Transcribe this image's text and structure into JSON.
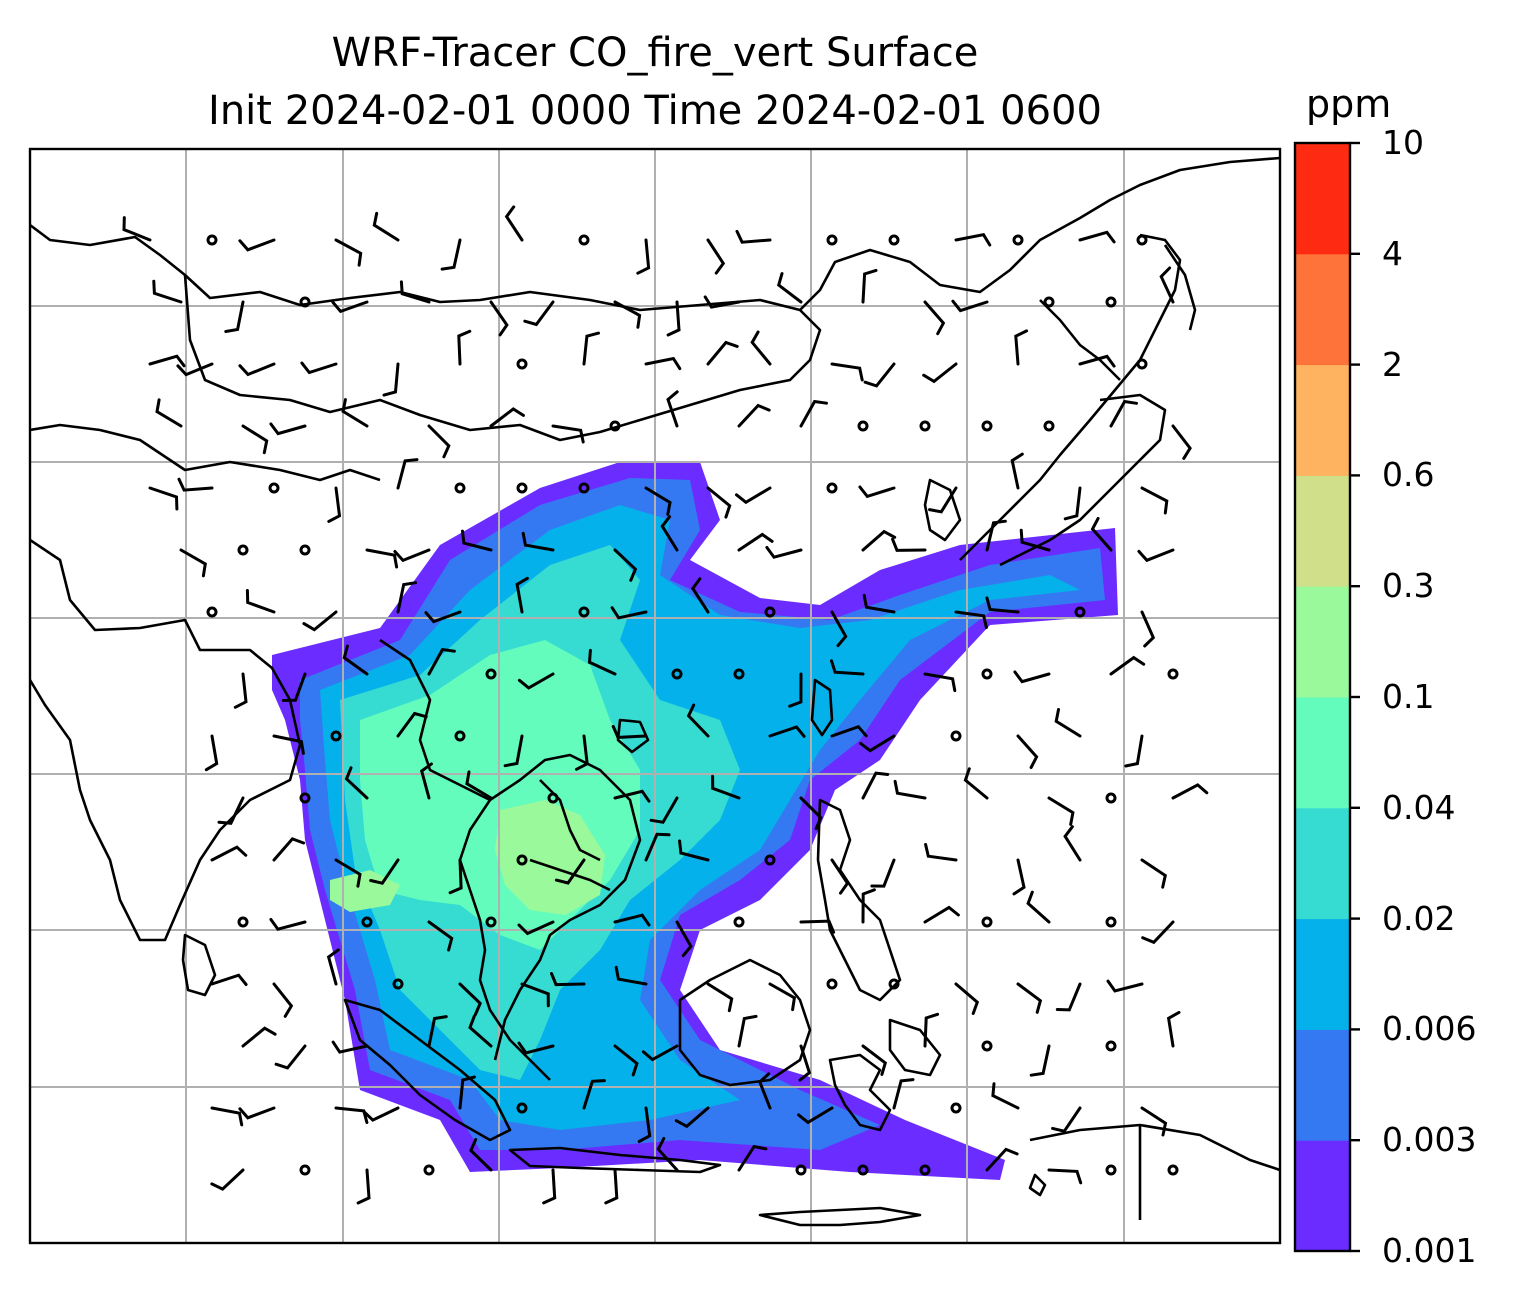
{
  "title": {
    "line1": "WRF-Tracer CO_fire_vert Surface",
    "line2": "Init 2024-02-01 0000 Time 2024-02-01 0600"
  },
  "colorbar": {
    "unit": "ppm",
    "levels": [
      "0.001",
      "0.003",
      "0.006",
      "0.02",
      "0.04",
      "0.1",
      "0.3",
      "0.6",
      "2",
      "4",
      "10"
    ],
    "colors": [
      "#6a2cff",
      "#3579f2",
      "#05b1ea",
      "#36dcd2",
      "#63fcbd",
      "#9af99a",
      "#d0e08a",
      "#fdb35f",
      "#fe7339",
      "#ff2a12"
    ]
  },
  "map": {
    "background": "#ffffff",
    "coastline_color": "#000000",
    "gridline_color": "#b0b0b0",
    "barb_color": "#000000"
  }
}
